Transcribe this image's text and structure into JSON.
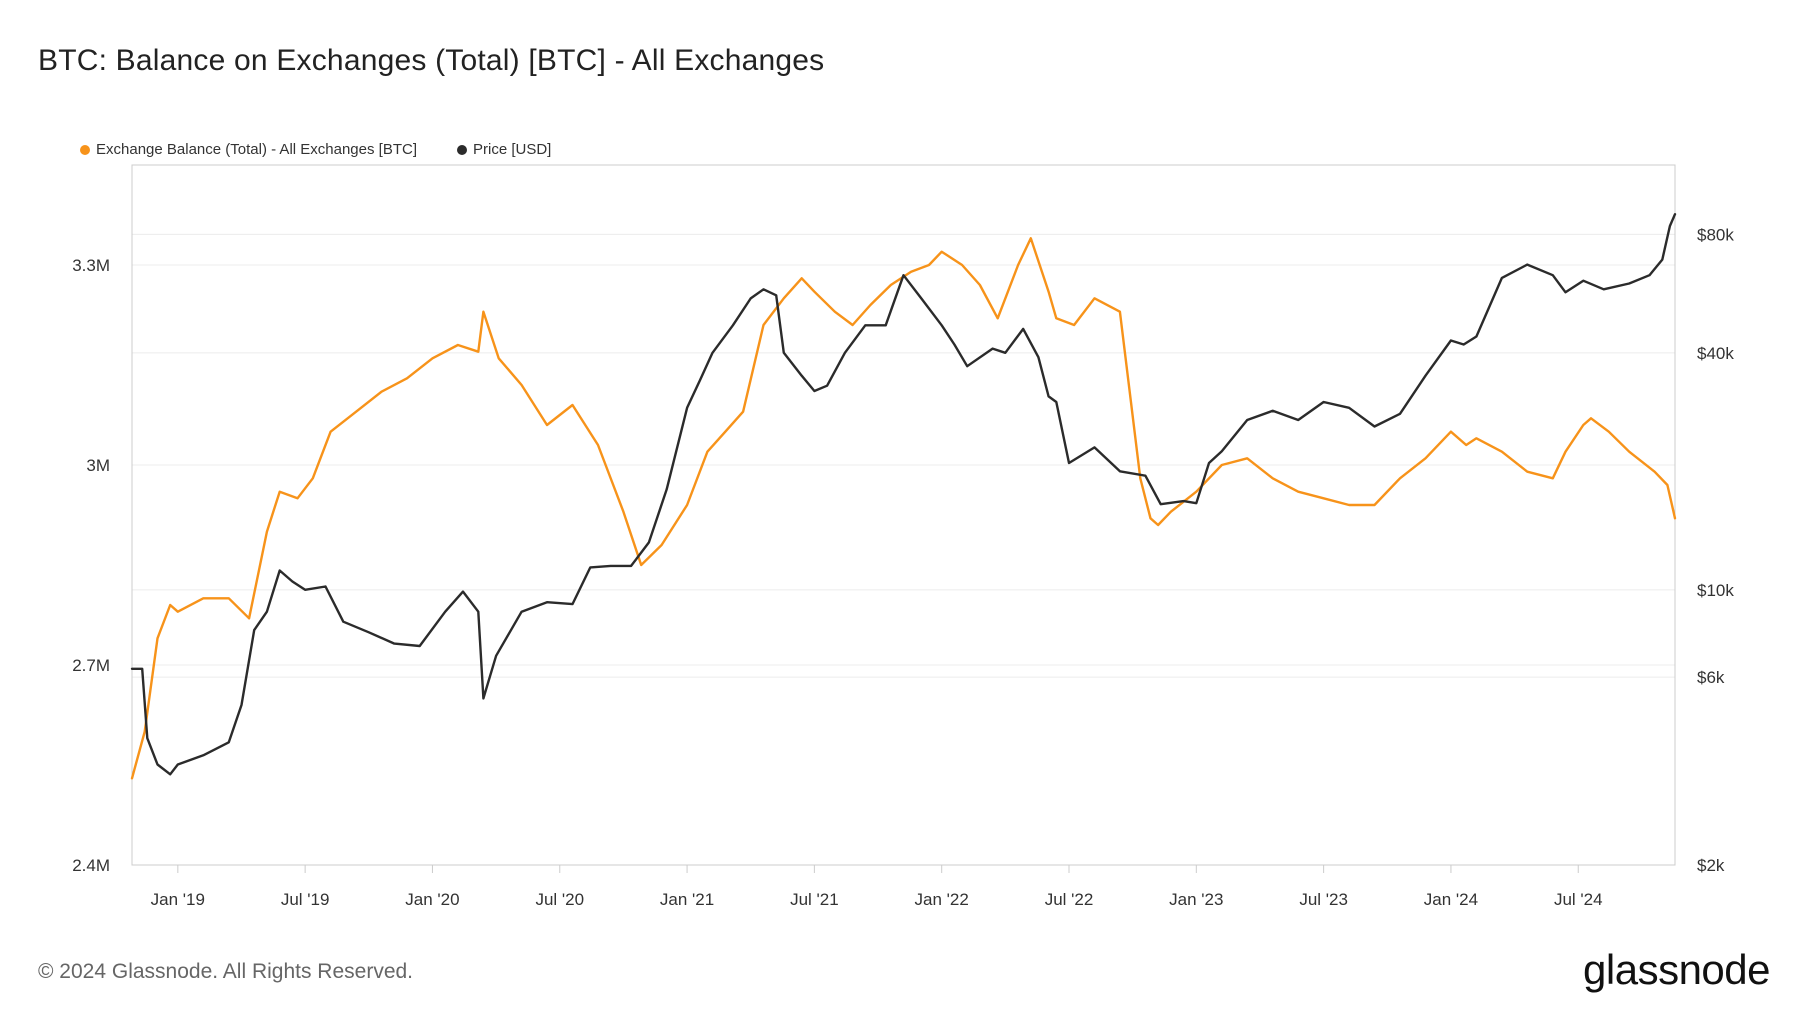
{
  "title": "BTC: Balance on Exchanges (Total) [BTC] - All Exchanges",
  "footer": "© 2024 Glassnode. All Rights Reserved.",
  "brand": "glassnode",
  "colors": {
    "balance": "#f7931a",
    "price": "#2b2b2b",
    "grid": "#ececec",
    "axis": "#cccccc"
  },
  "chart_data": {
    "type": "line",
    "title": "BTC: Balance on Exchanges (Total) [BTC] - All Exchanges",
    "x_ticks": [
      "Jan '19",
      "Jul '19",
      "Jan '20",
      "Jul '20",
      "Jan '21",
      "Jul '21",
      "Jan '22",
      "Jul '22",
      "Jan '23",
      "Jul '23",
      "Jan '24",
      "Jul '24"
    ],
    "x_tick_years": [
      2019.0,
      2019.5,
      2020.0,
      2020.5,
      2021.0,
      2021.5,
      2022.0,
      2022.5,
      2023.0,
      2023.5,
      2024.0,
      2024.5
    ],
    "x_range": [
      2018.82,
      2024.88
    ],
    "left_axis": {
      "ticks": [
        "2.4M",
        "2.7M",
        "3M",
        "3.3M"
      ],
      "tick_values": [
        2400000,
        2700000,
        3000000,
        3300000
      ],
      "range": [
        2400000,
        3450000
      ]
    },
    "right_axis": {
      "scale": "log",
      "ticks": [
        "$2k",
        "$6k",
        "$10k",
        "$40k",
        "$80k"
      ],
      "tick_values": [
        2000,
        6000,
        10000,
        40000,
        80000
      ],
      "range": [
        2000,
        120000
      ]
    },
    "legend_position": "top-left",
    "series": [
      {
        "name": "Exchange Balance (Total) - All Exchanges [BTC]",
        "axis": "left",
        "x": [
          2018.82,
          2018.87,
          2018.92,
          2018.97,
          2019.0,
          2019.1,
          2019.2,
          2019.28,
          2019.35,
          2019.4,
          2019.47,
          2019.53,
          2019.6,
          2019.7,
          2019.8,
          2019.9,
          2020.0,
          2020.1,
          2020.18,
          2020.2,
          2020.26,
          2020.35,
          2020.45,
          2020.55,
          2020.65,
          2020.75,
          2020.82,
          2020.9,
          2021.0,
          2021.08,
          2021.15,
          2021.22,
          2021.3,
          2021.38,
          2021.45,
          2021.5,
          2021.58,
          2021.65,
          2021.72,
          2021.8,
          2021.88,
          2021.95,
          2022.0,
          2022.08,
          2022.15,
          2022.22,
          2022.3,
          2022.35,
          2022.42,
          2022.45,
          2022.52,
          2022.6,
          2022.7,
          2022.78,
          2022.82,
          2022.85,
          2022.9,
          2023.0,
          2023.1,
          2023.2,
          2023.3,
          2023.4,
          2023.5,
          2023.6,
          2023.7,
          2023.8,
          2023.9,
          2024.0,
          2024.06,
          2024.1,
          2024.2,
          2024.3,
          2024.4,
          2024.45,
          2024.52,
          2024.55,
          2024.62,
          2024.7,
          2024.8,
          2024.85,
          2024.88
        ],
        "y": [
          2530000,
          2600000,
          2740000,
          2790000,
          2780000,
          2800000,
          2800000,
          2770000,
          2900000,
          2960000,
          2950000,
          2980000,
          3050000,
          3080000,
          3110000,
          3130000,
          3160000,
          3180000,
          3170000,
          3230000,
          3160000,
          3120000,
          3060000,
          3090000,
          3030000,
          2930000,
          2850000,
          2880000,
          2940000,
          3020000,
          3050000,
          3080000,
          3210000,
          3250000,
          3280000,
          3260000,
          3230000,
          3210000,
          3240000,
          3270000,
          3290000,
          3300000,
          3320000,
          3300000,
          3270000,
          3220000,
          3300000,
          3340000,
          3260000,
          3220000,
          3210000,
          3250000,
          3230000,
          2980000,
          2920000,
          2910000,
          2930000,
          2960000,
          3000000,
          3010000,
          2980000,
          2960000,
          2950000,
          2940000,
          2940000,
          2980000,
          3010000,
          3050000,
          3030000,
          3040000,
          3020000,
          2990000,
          2980000,
          3020000,
          3060000,
          3070000,
          3050000,
          3020000,
          2990000,
          2970000,
          2920000
        ]
      },
      {
        "name": "Price [USD]",
        "axis": "right",
        "x": [
          2018.82,
          2018.86,
          2018.88,
          2018.92,
          2018.97,
          2019.0,
          2019.1,
          2019.2,
          2019.25,
          2019.3,
          2019.35,
          2019.4,
          2019.45,
          2019.5,
          2019.58,
          2019.65,
          2019.75,
          2019.85,
          2019.95,
          2020.05,
          2020.12,
          2020.18,
          2020.2,
          2020.25,
          2020.35,
          2020.45,
          2020.55,
          2020.62,
          2020.7,
          2020.78,
          2020.85,
          2020.92,
          2021.0,
          2021.05,
          2021.1,
          2021.18,
          2021.25,
          2021.3,
          2021.35,
          2021.38,
          2021.45,
          2021.5,
          2021.55,
          2021.62,
          2021.7,
          2021.78,
          2021.85,
          2021.92,
          2022.0,
          2022.05,
          2022.1,
          2022.2,
          2022.25,
          2022.32,
          2022.38,
          2022.42,
          2022.45,
          2022.5,
          2022.6,
          2022.7,
          2022.8,
          2022.86,
          2022.95,
          2023.0,
          2023.05,
          2023.1,
          2023.2,
          2023.3,
          2023.4,
          2023.5,
          2023.6,
          2023.7,
          2023.8,
          2023.9,
          2024.0,
          2024.05,
          2024.1,
          2024.2,
          2024.3,
          2024.4,
          2024.45,
          2024.52,
          2024.6,
          2024.7,
          2024.78,
          2024.83,
          2024.86,
          2024.88
        ],
        "y": [
          6300,
          6300,
          4200,
          3600,
          3400,
          3600,
          3800,
          4100,
          5100,
          7900,
          8800,
          11200,
          10500,
          10000,
          10200,
          8300,
          7800,
          7300,
          7200,
          8800,
          9900,
          8800,
          5300,
          6800,
          8800,
          9300,
          9200,
          11400,
          11500,
          11500,
          13200,
          18000,
          29000,
          34000,
          40000,
          47000,
          55000,
          58000,
          56000,
          40000,
          35000,
          32000,
          33000,
          40000,
          47000,
          47000,
          63000,
          55000,
          47000,
          42000,
          37000,
          41000,
          40000,
          46000,
          39000,
          31000,
          30000,
          21000,
          23000,
          20000,
          19500,
          16500,
          16800,
          16600,
          21000,
          22500,
          27000,
          28500,
          27000,
          30000,
          29000,
          26000,
          28000,
          35000,
          43000,
          42000,
          44000,
          62000,
          67000,
          63000,
          57000,
          61000,
          58000,
          60000,
          63000,
          69000,
          84000,
          90000
        ]
      }
    ]
  }
}
